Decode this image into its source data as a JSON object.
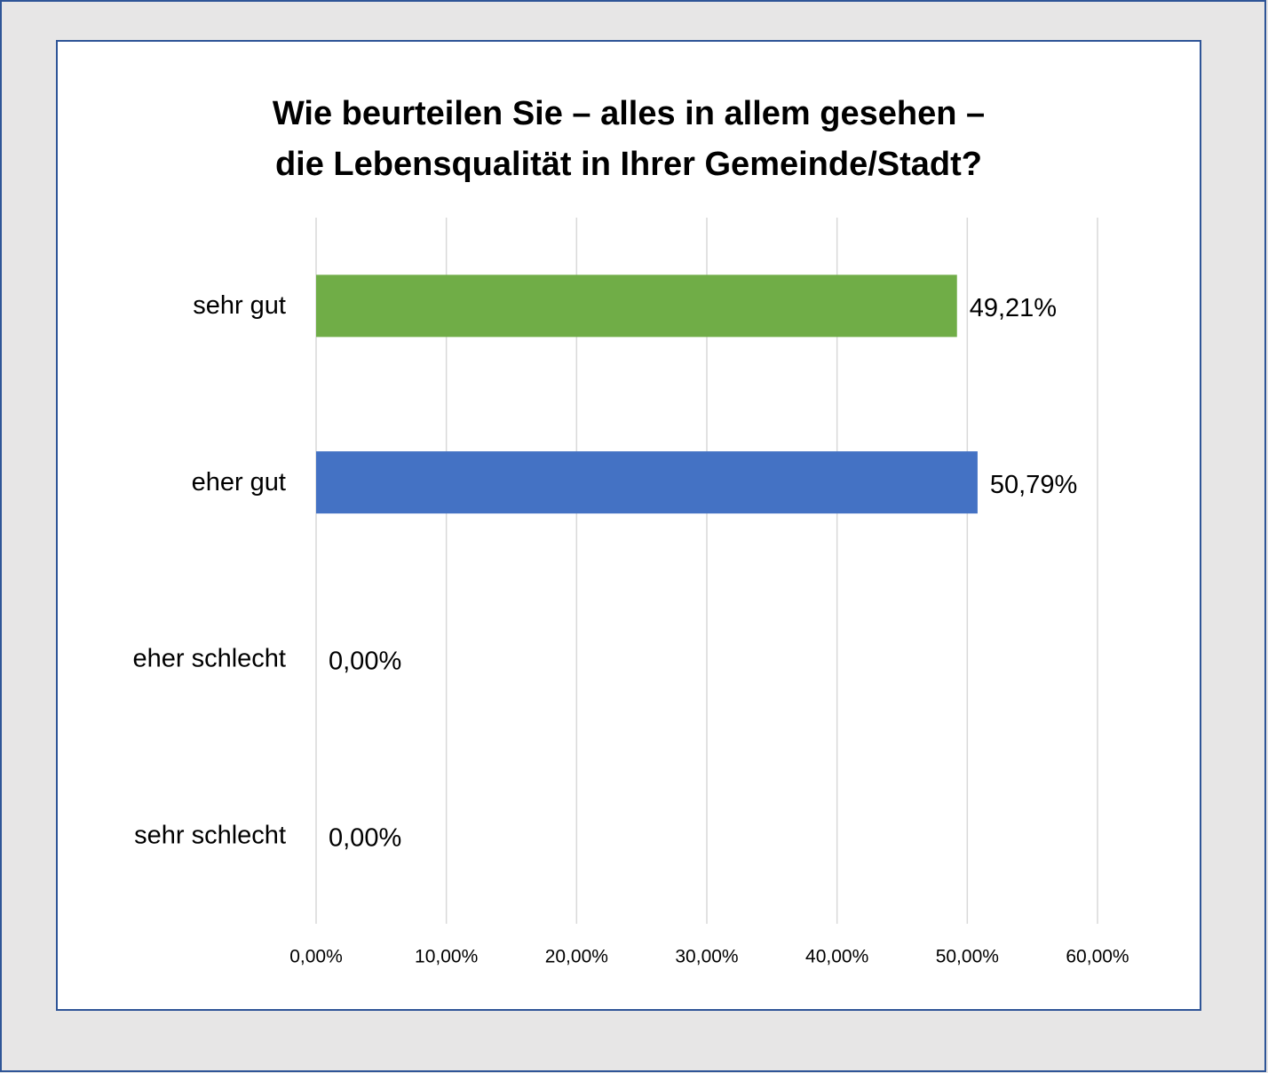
{
  "chart_data": {
    "type": "bar",
    "orientation": "horizontal",
    "title": [
      "Wie beurteilen Sie – alles in allem gesehen –",
      "die Lebensqualität in Ihrer Gemeinde/Stadt?"
    ],
    "categories": [
      "sehr gut",
      "eher gut",
      "eher schlecht",
      "sehr schlecht"
    ],
    "values": [
      49.21,
      50.79,
      0,
      0
    ],
    "value_labels": [
      "49,21%",
      "50,79%",
      "0,00%",
      "0,00%"
    ],
    "colors": [
      "#70ad47",
      "#4472c4",
      null,
      null
    ],
    "xlim": [
      0,
      60
    ],
    "xticks": [
      {
        "value": 0,
        "label": "0,00%"
      },
      {
        "value": 10,
        "label": "10,00%"
      },
      {
        "value": 20,
        "label": "20,00%"
      },
      {
        "value": 30,
        "label": "30,00%"
      },
      {
        "value": 40,
        "label": "40,00%"
      },
      {
        "value": 50,
        "label": "50,00%"
      },
      {
        "value": 60,
        "label": "60,00%"
      }
    ],
    "grid": true
  }
}
